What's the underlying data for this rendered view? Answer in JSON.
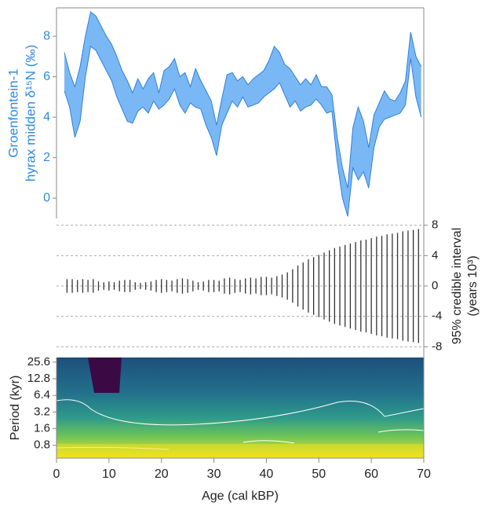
{
  "chart_data": [
    {
      "type": "band",
      "ylabel": [
        "Groenfontein-1",
        "hyrax midden δ¹⁵N (‰)"
      ],
      "color": "#7ab8f5",
      "line_color": "#2f7fd8",
      "x": [
        1.5,
        2.5,
        3.5,
        4.5,
        5.5,
        6.5,
        7.5,
        8.5,
        9.5,
        10.5,
        11.5,
        12.5,
        13.5,
        14.5,
        15.5,
        16.5,
        17.5,
        18.5,
        19.5,
        20.5,
        21.5,
        22.5,
        23.5,
        24.5,
        25.5,
        26.5,
        27.5,
        28.5,
        29.5,
        30.5,
        31.5,
        32.5,
        33.5,
        34.5,
        35.5,
        36.5,
        37.5,
        38.5,
        39.5,
        40.5,
        41.5,
        42.5,
        43.5,
        44.5,
        45.5,
        46.5,
        47.5,
        48.5,
        49.5,
        50.5,
        51.5,
        52.5,
        53.5,
        54.5,
        55.5,
        56.5,
        57.5,
        58.5,
        59.5,
        60.5,
        61.5,
        62.5,
        63.5,
        64.5,
        65.5,
        66.5,
        67.5,
        68.5,
        69.5
      ],
      "lower": [
        5.3,
        4.5,
        3.0,
        3.8,
        6.0,
        7.5,
        7.3,
        6.8,
        6.3,
        5.8,
        5.0,
        4.4,
        3.8,
        3.7,
        4.3,
        4.5,
        4.2,
        4.8,
        4.4,
        4.6,
        4.9,
        5.4,
        4.6,
        4.2,
        4.7,
        4.5,
        4.4,
        3.6,
        3.0,
        2.1,
        3.6,
        4.2,
        4.8,
        4.5,
        5.0,
        4.5,
        4.6,
        4.7,
        5.0,
        5.2,
        5.4,
        5.7,
        5.1,
        4.5,
        4.8,
        4.3,
        4.5,
        4.6,
        4.9,
        4.6,
        4.2,
        4.3,
        1.8,
        0.0,
        -0.9,
        1.5,
        0.9,
        1.3,
        0.5,
        2.5,
        3.5,
        3.9,
        4.0,
        4.1,
        4.2,
        4.6,
        6.9,
        5.0,
        4.0
      ],
      "upper": [
        7.2,
        6.2,
        5.5,
        6.5,
        8.0,
        9.2,
        9.0,
        8.5,
        8.0,
        7.6,
        7.0,
        6.3,
        5.8,
        5.2,
        5.9,
        5.4,
        5.9,
        6.2,
        5.2,
        6.3,
        6.5,
        6.9,
        6.0,
        6.2,
        5.5,
        6.4,
        5.8,
        5.3,
        4.8,
        3.6,
        4.9,
        6.1,
        6.2,
        5.8,
        6.0,
        5.6,
        5.9,
        6.1,
        6.3,
        6.8,
        7.5,
        7.2,
        6.6,
        6.4,
        6.0,
        5.6,
        5.9,
        5.6,
        6.1,
        5.5,
        5.5,
        5.1,
        3.0,
        1.5,
        0.5,
        3.5,
        4.5,
        3.8,
        2.5,
        4.1,
        4.7,
        5.3,
        4.9,
        4.8,
        5.2,
        5.8,
        8.2,
        7.0,
        6.5
      ],
      "xlim": [
        0,
        70
      ],
      "ylim": [
        -1,
        9.4
      ],
      "yticks": [
        0,
        2,
        4,
        6,
        8
      ]
    },
    {
      "type": "errorbar",
      "ylabel": [
        "95% credible interval",
        "(years 10³)"
      ],
      "color": "#333333",
      "x": [
        2,
        3,
        4,
        5,
        6,
        7,
        8,
        9,
        10,
        11,
        12,
        13,
        14,
        15,
        16,
        17,
        18,
        19,
        20,
        21,
        22,
        23,
        24,
        25,
        26,
        27,
        28,
        29,
        30,
        31,
        32,
        33,
        34,
        35,
        36,
        37,
        38,
        39,
        40,
        41,
        42,
        43,
        44,
        45,
        46,
        47,
        48,
        49,
        50,
        51,
        52,
        53,
        54,
        55,
        56,
        57,
        58,
        59,
        60,
        61,
        62,
        63,
        64,
        65,
        66,
        67,
        68,
        69
      ],
      "values": [
        0.9,
        0.9,
        0.8,
        0.9,
        0.8,
        0.9,
        0.6,
        0.5,
        0.6,
        0.5,
        0.7,
        0.8,
        0.8,
        0.5,
        0.4,
        0.5,
        0.6,
        0.8,
        0.9,
        0.8,
        0.7,
        0.9,
        1.0,
        0.9,
        0.7,
        0.5,
        0.6,
        0.8,
        0.8,
        0.7,
        1.0,
        1.1,
        0.9,
        0.8,
        1.0,
        1.1,
        1.0,
        1.2,
        1.2,
        1.1,
        1.3,
        1.5,
        1.8,
        2.2,
        2.7,
        3.1,
        3.5,
        3.8,
        4.1,
        4.4,
        4.7,
        5.0,
        5.2,
        5.4,
        5.6,
        5.8,
        6.0,
        6.1,
        6.3,
        6.5,
        6.6,
        6.8,
        6.9,
        7.0,
        7.2,
        7.3,
        7.4,
        7.5
      ],
      "xlim": [
        0,
        70
      ],
      "ylim": [
        -9,
        9
      ],
      "yticks": [
        -8,
        -4,
        0,
        4,
        8
      ],
      "grid": true
    },
    {
      "type": "heatmap",
      "ylabel": "Period (kyr)",
      "xlabel": "Age (cal kBP)",
      "ylog": true,
      "xlim": [
        0,
        70
      ],
      "xticks": [
        0,
        10,
        20,
        30,
        40,
        50,
        60,
        70
      ],
      "ylim": [
        0.47,
        31
      ],
      "yticks": [
        0.8,
        1.6,
        3.2,
        6.4,
        12.8,
        25.6
      ]
    }
  ]
}
